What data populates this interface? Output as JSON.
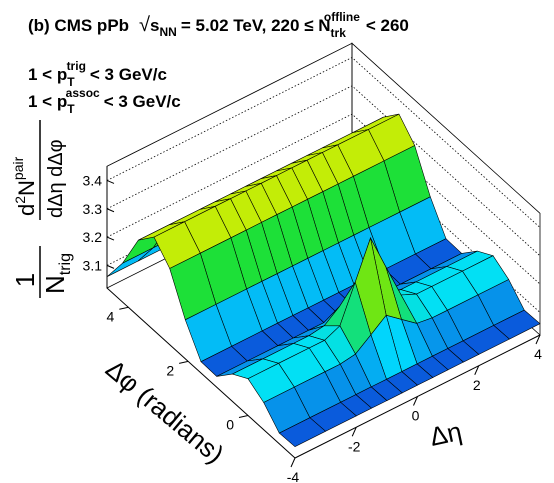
{
  "chart_data": {
    "type": "surface3d",
    "title_parts": [
      "(b) CMS pPb",
      "√",
      "s",
      "NN",
      "= 5.02 TeV, 220 ≤ N",
      "trk",
      "offline",
      "< 260"
    ],
    "trig_label_parts": [
      "1 < p",
      "T",
      "trig",
      "< 3 GeV/c"
    ],
    "assoc_label_parts": [
      "1 < p",
      "T",
      "assoc",
      "< 3 GeV/c"
    ],
    "z_label_parts": [
      "1",
      "N",
      "trig",
      "d",
      "2",
      "N",
      "pair",
      "dΔη dΔφ"
    ],
    "x_label": "Δη",
    "y_label": "Δφ (radians)",
    "eta": [
      -4,
      -3,
      -2,
      -1.5,
      -1,
      -0.5,
      0,
      0.5,
      1,
      1.5,
      2,
      3,
      4
    ],
    "phi": [
      -1.571,
      -1.047,
      -0.524,
      0,
      0.524,
      1.047,
      1.571,
      2.094,
      2.618,
      3.142,
      3.665,
      4.189,
      4.712
    ],
    "z": [
      [
        3.06,
        3.06,
        3.06,
        3.06,
        3.06,
        3.06,
        3.06,
        3.06,
        3.06,
        3.06,
        3.06,
        3.06,
        3.06
      ],
      [
        3.058,
        3.058,
        3.058,
        3.058,
        3.058,
        3.058,
        3.058,
        3.058,
        3.058,
        3.058,
        3.058,
        3.058,
        3.058
      ],
      [
        3.116,
        3.116,
        3.116,
        3.116,
        3.124,
        3.165,
        3.207,
        3.165,
        3.124,
        3.116,
        3.116,
        3.116,
        3.116
      ],
      [
        3.15,
        3.15,
        3.15,
        3.15,
        3.174,
        3.301,
        3.43,
        3.301,
        3.174,
        3.15,
        3.15,
        3.15,
        3.15
      ],
      [
        3.116,
        3.116,
        3.116,
        3.116,
        3.124,
        3.165,
        3.207,
        3.165,
        3.124,
        3.116,
        3.116,
        3.116,
        3.116
      ],
      [
        3.058,
        3.058,
        3.058,
        3.058,
        3.058,
        3.058,
        3.058,
        3.058,
        3.058,
        3.058,
        3.058,
        3.058,
        3.058
      ],
      [
        3.06,
        3.06,
        3.06,
        3.06,
        3.06,
        3.06,
        3.06,
        3.06,
        3.06,
        3.06,
        3.06,
        3.06,
        3.06
      ],
      [
        3.158,
        3.158,
        3.158,
        3.158,
        3.158,
        3.158,
        3.158,
        3.158,
        3.158,
        3.158,
        3.158,
        3.158,
        3.158
      ],
      [
        3.289,
        3.289,
        3.289,
        3.289,
        3.289,
        3.289,
        3.289,
        3.289,
        3.289,
        3.289,
        3.289,
        3.289,
        3.289
      ],
      [
        3.35,
        3.35,
        3.35,
        3.35,
        3.35,
        3.35,
        3.35,
        3.35,
        3.35,
        3.35,
        3.35,
        3.35,
        3.35
      ],
      [
        3.289,
        3.289,
        3.289,
        3.289,
        3.289,
        3.289,
        3.289,
        3.289,
        3.289,
        3.289,
        3.289,
        3.289,
        3.289
      ],
      [
        3.158,
        3.158,
        3.158,
        3.158,
        3.158,
        3.158,
        3.158,
        3.158,
        3.158,
        3.158,
        3.158,
        3.158,
        3.158
      ],
      [
        3.06,
        3.06,
        3.06,
        3.06,
        3.06,
        3.06,
        3.06,
        3.06,
        3.06,
        3.06,
        3.06,
        3.06,
        3.06
      ]
    ],
    "etalim": [
      -4,
      4
    ],
    "philim": [
      -1.571,
      4.712
    ],
    "zlim": [
      3.02,
      3.45
    ],
    "etaticks": [
      -4,
      -2,
      0,
      2,
      4
    ],
    "phiticks": [
      0,
      2,
      4
    ],
    "zticks": [
      3.1,
      3.2,
      3.3,
      3.4
    ],
    "grid": true,
    "palette": [
      "#1010c8",
      "#00e0ff",
      "#20e020",
      "#f0f000",
      "#ff0000"
    ]
  }
}
